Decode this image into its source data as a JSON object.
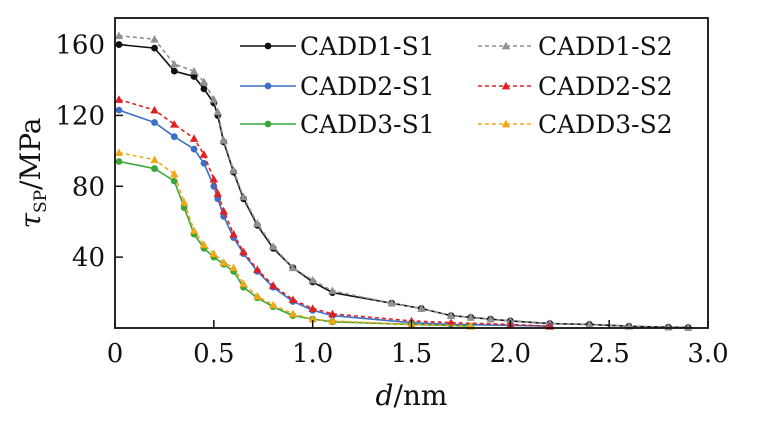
{
  "chart_data": {
    "type": "line",
    "xlabel_var": "d",
    "xlabel_unit": "/nm",
    "ylabel_var": "τ",
    "ylabel_sub": "SP",
    "ylabel_unit": "/MPa",
    "xlim": [
      0,
      3.0
    ],
    "ylim": [
      0,
      175
    ],
    "xticks": [
      0,
      0.5,
      1.0,
      1.5,
      2.0,
      2.5,
      3.0
    ],
    "xtick_labels": [
      "0",
      "0.5",
      "1.0",
      "1.5",
      "2.0",
      "2.5",
      "3.0"
    ],
    "yticks": [
      40,
      80,
      120,
      160
    ],
    "ytick_labels": [
      "40",
      "80",
      "120",
      "160"
    ],
    "grid": false,
    "legend_position": "top-right",
    "series": [
      {
        "name": "CADD1-S1",
        "color": "#111111",
        "dash": "solid",
        "marker": "circle",
        "x": [
          0.02,
          0.2,
          0.3,
          0.4,
          0.45,
          0.5,
          0.52,
          0.55,
          0.6,
          0.65,
          0.72,
          0.8,
          0.9,
          1.0,
          1.1,
          1.4,
          1.55,
          1.7,
          1.8,
          1.9,
          2.0,
          2.2,
          2.4,
          2.6,
          2.8,
          2.9
        ],
        "y": [
          160,
          158,
          145,
          142,
          135,
          127,
          120,
          105,
          88,
          73,
          58,
          45,
          34,
          26,
          20,
          14,
          11,
          7,
          6,
          5,
          4,
          2.5,
          2,
          1,
          0.5,
          0.3
        ]
      },
      {
        "name": "CADD1-S2",
        "color": "#909090",
        "dash": "dashed",
        "marker": "triangle",
        "x": [
          0.02,
          0.2,
          0.3,
          0.4,
          0.45,
          0.5,
          0.52,
          0.55,
          0.6,
          0.65,
          0.72,
          0.8,
          0.9,
          1.0,
          1.1,
          1.4,
          1.55,
          1.7,
          1.8,
          1.9,
          2.0,
          2.2,
          2.4,
          2.6,
          2.8,
          2.9
        ],
        "y": [
          165,
          163,
          149,
          145,
          139,
          129,
          122,
          106,
          89,
          74,
          59,
          46,
          34,
          27,
          21,
          14,
          11,
          7,
          6,
          5,
          4,
          2.5,
          2,
          1,
          0.5,
          0.3
        ]
      },
      {
        "name": "CADD2-S1",
        "color": "#3c6fc4",
        "dash": "solid",
        "marker": "circle",
        "x": [
          0.02,
          0.2,
          0.3,
          0.4,
          0.45,
          0.5,
          0.52,
          0.55,
          0.6,
          0.65,
          0.72,
          0.8,
          0.9,
          1.0,
          1.1,
          1.5,
          1.7,
          2.0,
          2.2
        ],
        "y": [
          123,
          116,
          108,
          101,
          93,
          80,
          73,
          63,
          51,
          42,
          32,
          23,
          15,
          10,
          7,
          3,
          2,
          1.5,
          1
        ]
      },
      {
        "name": "CADD2-S2",
        "color": "#e02020",
        "dash": "dashed",
        "marker": "triangle",
        "x": [
          0.02,
          0.2,
          0.3,
          0.4,
          0.45,
          0.5,
          0.52,
          0.55,
          0.6,
          0.65,
          0.72,
          0.8,
          0.9,
          1.0,
          1.1,
          1.5,
          1.7,
          2.0,
          2.2
        ],
        "y": [
          129,
          123,
          115,
          107,
          98,
          84,
          76,
          66,
          53,
          43,
          33,
          24,
          16,
          11,
          8,
          4,
          3,
          2,
          1
        ]
      },
      {
        "name": "CADD3-S1",
        "color": "#3aa63a",
        "dash": "solid",
        "marker": "circle",
        "x": [
          0.02,
          0.2,
          0.3,
          0.35,
          0.4,
          0.45,
          0.5,
          0.55,
          0.6,
          0.65,
          0.72,
          0.8,
          0.9,
          1.0,
          1.1,
          1.5,
          1.8
        ],
        "y": [
          94,
          90,
          83,
          68,
          53,
          45,
          40,
          36,
          32,
          23,
          17,
          12,
          7,
          5,
          3.5,
          2,
          1
        ]
      },
      {
        "name": "CADD3-S2",
        "color": "#f0a818",
        "dash": "dashed",
        "marker": "triangle",
        "x": [
          0.02,
          0.2,
          0.3,
          0.35,
          0.4,
          0.45,
          0.5,
          0.55,
          0.6,
          0.65,
          0.72,
          0.8,
          0.9,
          1.0,
          1.1,
          1.5,
          1.8
        ],
        "y": [
          99,
          95,
          87,
          71,
          55,
          47,
          42,
          37,
          34,
          25,
          18,
          13,
          8,
          5,
          4,
          2,
          1
        ]
      }
    ],
    "legend_layout": {
      "columns": [
        [
          "CADD1-S1",
          "CADD2-S1",
          "CADD3-S1"
        ],
        [
          "CADD1-S2",
          "CADD2-S2",
          "CADD3-S2"
        ]
      ]
    }
  }
}
